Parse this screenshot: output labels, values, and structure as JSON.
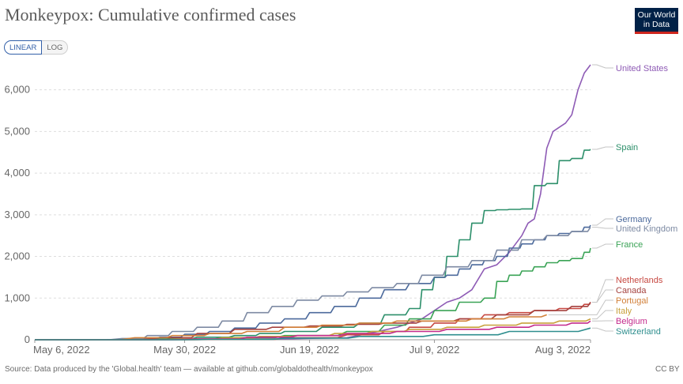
{
  "title": "Monkeypox: Cumulative confirmed cases",
  "logo": {
    "line1": "Our World",
    "line2": "in Data"
  },
  "scale_toggle": {
    "linear": "LINEAR",
    "log": "LOG"
  },
  "source": "Source: Data produced by the 'Global.health' team — available at github.com/globaldothealth/monkeypox",
  "license": "CC BY",
  "colors": {
    "grid": "#dddddd",
    "axis": "#666666",
    "label": "#666666"
  },
  "chart_data": {
    "type": "line",
    "title": "Monkeypox: Cumulative confirmed cases",
    "xlabel": "",
    "ylabel": "",
    "ylim": [
      0,
      6600
    ],
    "xlim": [
      0,
      89
    ],
    "x_ticks": [
      {
        "day": 0,
        "label": "May 6, 2022"
      },
      {
        "day": 24,
        "label": "May 30, 2022"
      },
      {
        "day": 44,
        "label": "Jun 19, 2022"
      },
      {
        "day": 64,
        "label": "Jul 9, 2022"
      },
      {
        "day": 89,
        "label": "Aug 3, 2022"
      }
    ],
    "y_ticks": [
      {
        "value": 0,
        "label": "0"
      },
      {
        "value": 1000,
        "label": "1,000"
      },
      {
        "value": 2000,
        "label": "2,000"
      },
      {
        "value": 3000,
        "label": "3,000"
      },
      {
        "value": 4000,
        "label": "4,000"
      },
      {
        "value": 5000,
        "label": "5,000"
      },
      {
        "value": 6000,
        "label": "6,000"
      }
    ],
    "series": [
      {
        "name": "United States",
        "color": "#8e5bb5",
        "step": false,
        "days": [
          0,
          20,
          40,
          50,
          55,
          58,
          62,
          64,
          66,
          68,
          70,
          72,
          74,
          76,
          78,
          79,
          80,
          81,
          82,
          83,
          84,
          85,
          86,
          87,
          88,
          89
        ],
        "values": [
          0,
          5,
          20,
          50,
          200,
          300,
          500,
          700,
          900,
          1000,
          1200,
          1700,
          1800,
          2100,
          2500,
          2800,
          2900,
          3500,
          4600,
          5000,
          5100,
          5200,
          5400,
          6000,
          6400,
          6600
        ]
      },
      {
        "name": "Spain",
        "color": "#2c8f6a",
        "step": true,
        "days": [
          0,
          14,
          20,
          26,
          32,
          36,
          40,
          46,
          52,
          56,
          60,
          62,
          64,
          66,
          68,
          70,
          72,
          74,
          76,
          78,
          80,
          82,
          84,
          86,
          88,
          89
        ],
        "values": [
          0,
          10,
          20,
          60,
          100,
          150,
          200,
          300,
          400,
          600,
          750,
          1200,
          1500,
          2000,
          2400,
          2800,
          3100,
          3120,
          3130,
          3140,
          3700,
          3750,
          4300,
          4350,
          4550,
          4570
        ]
      },
      {
        "name": "Germany",
        "color": "#4c6a9c",
        "step": true,
        "days": [
          0,
          16,
          20,
          24,
          28,
          32,
          36,
          40,
          44,
          48,
          52,
          56,
          60,
          64,
          66,
          68,
          70,
          72,
          74,
          76,
          78,
          80,
          82,
          84,
          86,
          88,
          89
        ],
        "values": [
          0,
          20,
          60,
          130,
          200,
          280,
          400,
          500,
          650,
          800,
          1000,
          1200,
          1350,
          1500,
          1550,
          1700,
          1800,
          1900,
          2000,
          2200,
          2300,
          2400,
          2500,
          2550,
          2600,
          2700,
          2750
        ]
      },
      {
        "name": "United Kingdom",
        "color": "#7d8aa3",
        "step": true,
        "days": [
          0,
          14,
          18,
          22,
          26,
          30,
          34,
          38,
          42,
          46,
          50,
          54,
          58,
          62,
          66,
          70,
          74,
          78,
          82,
          86,
          89
        ],
        "values": [
          0,
          30,
          100,
          200,
          300,
          450,
          650,
          800,
          950,
          1050,
          1150,
          1250,
          1350,
          1550,
          1750,
          1900,
          2150,
          2400,
          2500,
          2600,
          2700
        ]
      },
      {
        "name": "France",
        "color": "#3aa356",
        "step": true,
        "days": [
          0,
          22,
          30,
          40,
          50,
          56,
          60,
          64,
          68,
          72,
          74,
          76,
          78,
          80,
          82,
          84,
          86,
          88,
          89
        ],
        "values": [
          0,
          20,
          50,
          100,
          200,
          350,
          500,
          700,
          900,
          1000,
          1400,
          1550,
          1650,
          1750,
          1850,
          1900,
          1950,
          2100,
          2200
        ]
      },
      {
        "name": "Netherlands",
        "color": "#c74942",
        "step": true,
        "days": [
          0,
          30,
          40,
          50,
          56,
          60,
          64,
          68,
          72,
          76,
          80,
          84,
          88,
          89
        ],
        "values": [
          0,
          10,
          50,
          120,
          200,
          300,
          400,
          500,
          600,
          650,
          700,
          750,
          850,
          900
        ]
      },
      {
        "name": "Canada",
        "color": "#a5423f",
        "step": true,
        "days": [
          0,
          20,
          26,
          32,
          38,
          44,
          50,
          56,
          62,
          68,
          74,
          80,
          86,
          89
        ],
        "values": [
          0,
          50,
          150,
          250,
          300,
          330,
          370,
          400,
          450,
          500,
          600,
          700,
          800,
          900
        ]
      },
      {
        "name": "Portugal",
        "color": "#d2813a",
        "step": true,
        "days": [
          0,
          16,
          22,
          28,
          34,
          40,
          46,
          52,
          58,
          64,
          70,
          76,
          82
        ],
        "values": [
          0,
          50,
          100,
          150,
          200,
          300,
          350,
          400,
          450,
          450,
          500,
          550,
          600
        ]
      },
      {
        "name": "Italy",
        "color": "#c8a03b",
        "step": true,
        "days": [
          0,
          24,
          30,
          36,
          42,
          48,
          54,
          60,
          66,
          72,
          78,
          84,
          89
        ],
        "values": [
          0,
          20,
          50,
          80,
          100,
          150,
          200,
          250,
          300,
          350,
          400,
          450,
          500
        ]
      },
      {
        "name": "Belgium",
        "color": "#c42b8c",
        "step": true,
        "days": [
          0,
          26,
          34,
          42,
          50,
          58,
          66,
          74,
          80,
          86,
          89
        ],
        "values": [
          0,
          20,
          60,
          100,
          150,
          200,
          250,
          300,
          350,
          400,
          450
        ]
      },
      {
        "name": "Switzerland",
        "color": "#2e8e8e",
        "step": true,
        "days": [
          0,
          28,
          40,
          52,
          64,
          76,
          89
        ],
        "values": [
          0,
          10,
          40,
          80,
          120,
          200,
          280
        ]
      }
    ]
  }
}
